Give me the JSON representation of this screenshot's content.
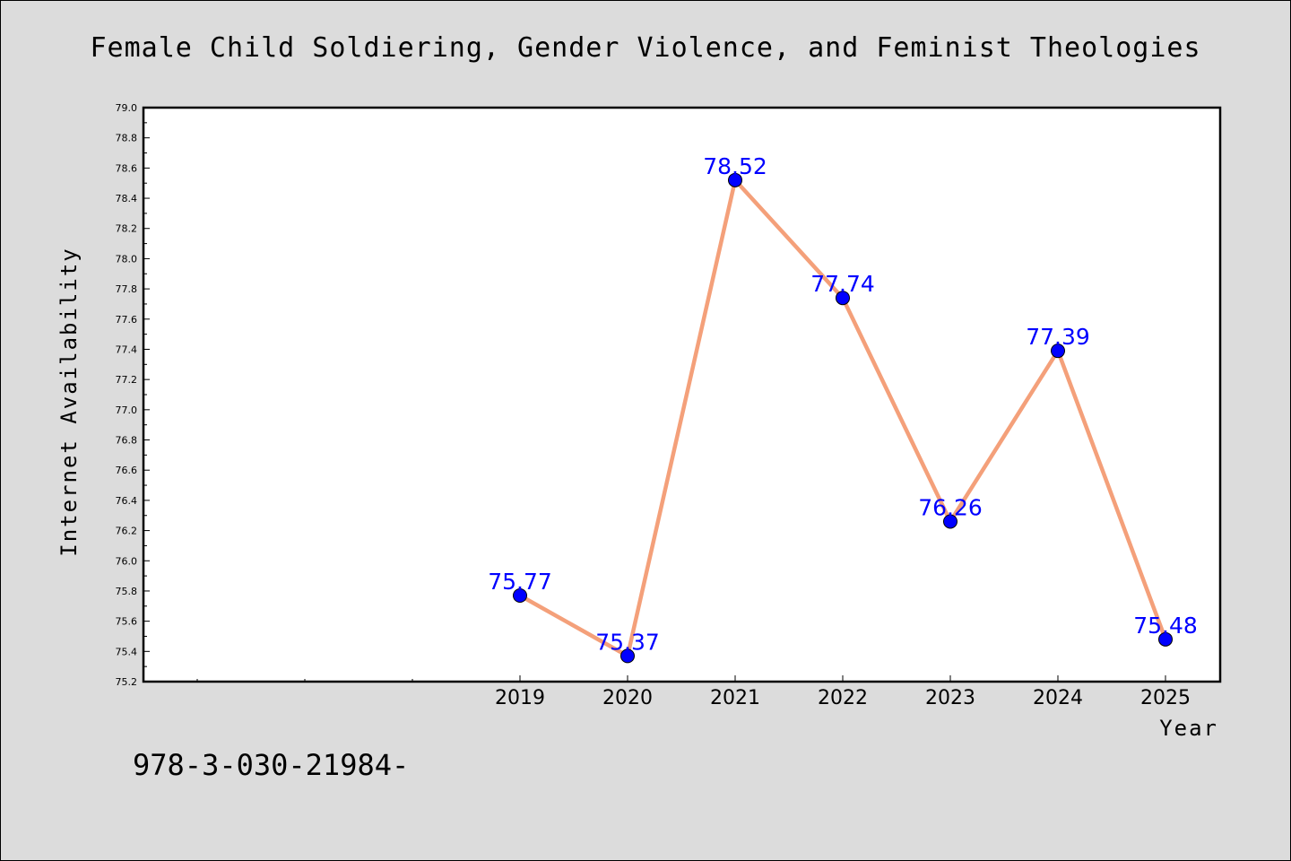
{
  "chart_data": {
    "type": "line",
    "title": "Female Child Soldiering, Gender Violence, and Feminist Theologies",
    "xlabel": "Year",
    "ylabel": "Internet Availability",
    "x": [
      "2019",
      "2020",
      "2021",
      "2022",
      "2023",
      "2024",
      "2025"
    ],
    "series": [
      {
        "values": [
          75.77,
          75.37,
          78.52,
          77.74,
          76.26,
          77.39,
          75.48
        ],
        "data_labels": [
          "75.77",
          "75.37",
          "78.52",
          "77.74",
          "76.26",
          "77.39",
          "75.48"
        ]
      }
    ],
    "ylim": [
      75.2,
      79.0
    ],
    "yticks": [
      "75.2",
      "75.4",
      "75.6",
      "75.8",
      "76.0",
      "76.2",
      "76.4",
      "76.6",
      "76.8",
      "77.0",
      "77.2",
      "77.4",
      "77.6",
      "77.8",
      "78.0",
      "78.2",
      "78.4",
      "78.6",
      "78.8",
      "79.0"
    ],
    "grid": false,
    "legend": "none",
    "colors": {
      "line": "#f4a07a",
      "marker": "#0000ff",
      "data_label": "#0000ff",
      "background": "#dcdcdc",
      "plot_background": "#ffffff"
    }
  },
  "footer_text": "978-3-030-21984-"
}
